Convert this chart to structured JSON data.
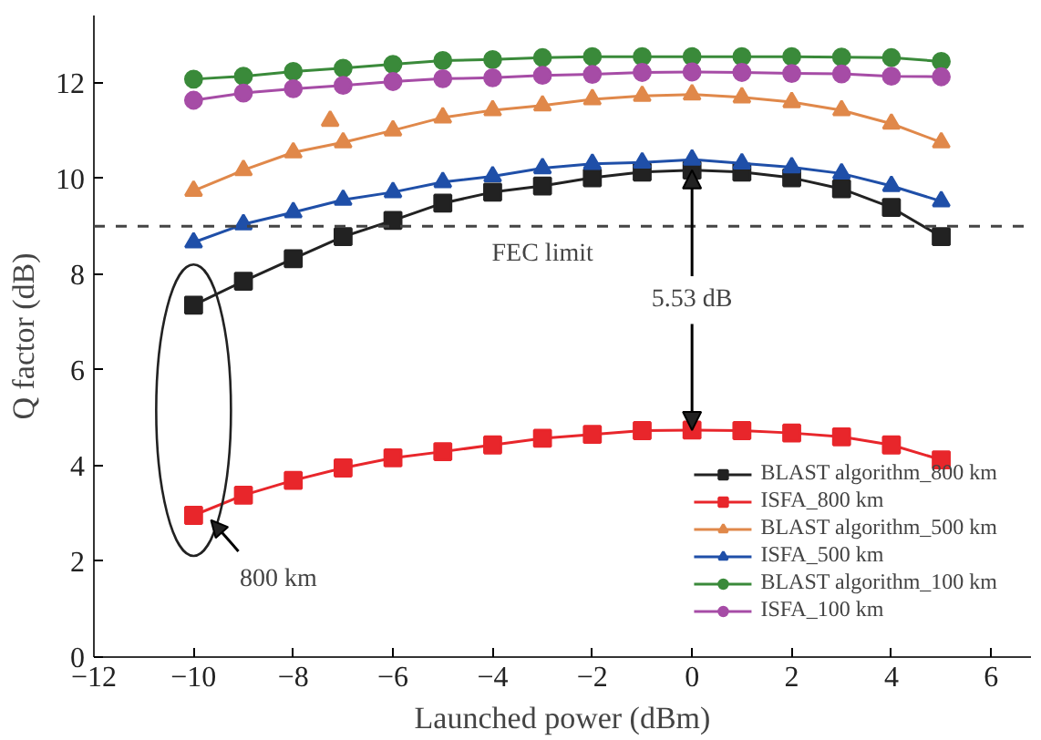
{
  "chart_data": {
    "type": "line",
    "xlabel": "Launched power (dBm)",
    "ylabel": "Q factor (dB)",
    "x": [
      -10,
      -9,
      -8,
      -7,
      -6,
      -5,
      -4,
      -3,
      -2,
      -1,
      0,
      1,
      2,
      3,
      4,
      5
    ],
    "series": [
      {
        "name": "BLAST algorithm_800 km",
        "color": "#222222",
        "marker": "square",
        "values": [
          7.35,
          7.85,
          8.32,
          8.78,
          9.12,
          9.48,
          9.71,
          9.84,
          10.01,
          10.13,
          10.17,
          10.13,
          10.01,
          9.78,
          9.39,
          8.78
        ]
      },
      {
        "name": "ISFA_800 km",
        "color": "#e8262b",
        "marker": "square",
        "values": [
          2.96,
          3.38,
          3.69,
          3.95,
          4.16,
          4.29,
          4.43,
          4.57,
          4.65,
          4.73,
          4.74,
          4.73,
          4.68,
          4.6,
          4.43,
          4.12
        ]
      },
      {
        "name": "BLAST algorithm_500 km",
        "color": "#e0884a",
        "marker": "triangle",
        "values": [
          9.74,
          10.17,
          10.54,
          10.75,
          11.0,
          11.27,
          11.42,
          11.52,
          11.65,
          11.72,
          11.75,
          11.69,
          11.59,
          11.42,
          11.14,
          10.75
        ]
      },
      {
        "name": "ISFA_500 km",
        "color": "#1f4fa8",
        "marker": "triangle",
        "values": [
          8.66,
          9.04,
          9.29,
          9.55,
          9.71,
          9.92,
          10.04,
          10.21,
          10.3,
          10.33,
          10.39,
          10.31,
          10.23,
          10.1,
          9.84,
          9.52
        ]
      },
      {
        "name": "BLAST algorithm_100 km",
        "color": "#3a8a3a",
        "marker": "circle",
        "values": [
          12.07,
          12.13,
          12.23,
          12.3,
          12.38,
          12.46,
          12.48,
          12.52,
          12.54,
          12.54,
          12.54,
          12.54,
          12.54,
          12.53,
          12.52,
          12.44
        ]
      },
      {
        "name": "ISFA_100 km",
        "color": "#a64ca6",
        "marker": "circle",
        "values": [
          11.63,
          11.78,
          11.87,
          11.94,
          12.02,
          12.08,
          12.1,
          12.15,
          12.17,
          12.21,
          12.22,
          12.21,
          12.19,
          12.18,
          12.13,
          12.12
        ]
      },
      {
        "type": "scatter",
        "color": "#e0884a",
        "marker": "triangle",
        "x": [
          -7.26
        ],
        "values": [
          11.2
        ]
      }
    ],
    "xlim": [
      -12,
      6.8
    ],
    "ylim": [
      0,
      13.4
    ],
    "xticks": [
      {
        "value": -12,
        "label": "−12"
      },
      {
        "value": -10,
        "label": "−10"
      },
      {
        "value": -8,
        "label": "−8"
      },
      {
        "value": -6,
        "label": "−6"
      },
      {
        "value": -4,
        "label": "−4"
      },
      {
        "value": -2,
        "label": "−2"
      },
      0,
      2,
      4,
      6
    ],
    "yticks": [
      0,
      2,
      4,
      6,
      8,
      10,
      12
    ],
    "ref_lines": [
      {
        "axis": "y",
        "value": 9,
        "label": "FEC limit",
        "line_style": "dashed",
        "color": "#444444"
      }
    ],
    "annotations": [
      {
        "text": "5.53 dB",
        "x": 0,
        "y": 10.17
      },
      {
        "text": "800 km",
        "x": -10,
        "y": 2.96
      }
    ],
    "legend": "bottom right",
    "grid": false,
    "line_style": "solid"
  }
}
